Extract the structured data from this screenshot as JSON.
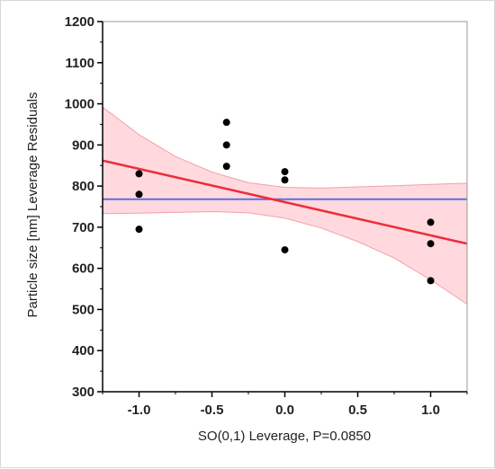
{
  "chart_data": {
    "type": "scatter",
    "title": "",
    "xlabel": "SO(0,1) Leverage, P=0.0850",
    "ylabel": "Particle size [nm] Leverage Residuals",
    "xlim": [
      -1.25,
      1.25
    ],
    "ylim": [
      300,
      1200
    ],
    "xticks": [
      -1.0,
      -0.5,
      0.0,
      0.5,
      1.0
    ],
    "xtick_labels": [
      "-1.0",
      "-0.5",
      "0.0",
      "0.5",
      "1.0"
    ],
    "yticks": [
      300,
      400,
      500,
      600,
      700,
      800,
      900,
      1000,
      1100,
      1200
    ],
    "ytick_labels": [
      "300",
      "400",
      "500",
      "600",
      "700",
      "800",
      "900",
      "1000",
      "1100",
      "1200"
    ],
    "points": [
      {
        "x": -1.0,
        "y": 830
      },
      {
        "x": -1.0,
        "y": 780
      },
      {
        "x": -1.0,
        "y": 695
      },
      {
        "x": -0.4,
        "y": 955
      },
      {
        "x": -0.4,
        "y": 900
      },
      {
        "x": -0.4,
        "y": 848
      },
      {
        "x": 0.0,
        "y": 835
      },
      {
        "x": 0.0,
        "y": 815
      },
      {
        "x": 0.0,
        "y": 645
      },
      {
        "x": 1.0,
        "y": 712
      },
      {
        "x": 1.0,
        "y": 660
      },
      {
        "x": 1.0,
        "y": 570
      }
    ],
    "fit_line": {
      "x": [
        -1.25,
        1.25
      ],
      "y": [
        862,
        660
      ]
    },
    "mean_line": {
      "y": 768
    },
    "confidence_band": {
      "x": [
        -1.25,
        -1.0,
        -0.75,
        -0.5,
        -0.25,
        0.0,
        0.25,
        0.5,
        0.75,
        1.0,
        1.25
      ],
      "upper": [
        992,
        925,
        872,
        834,
        808,
        797,
        795,
        798,
        801,
        804,
        807
      ],
      "lower": [
        733,
        734,
        736,
        738,
        735,
        722,
        698,
        665,
        625,
        572,
        513
      ]
    },
    "grid": false,
    "colors": {
      "points": "#000000",
      "fit_line": "#ee2d3c",
      "mean_line": "#5b6fe0",
      "band_fill": "#ffd9de",
      "band_edge": "#f3a0a8",
      "axis": "#000000",
      "frame": "#999999"
    }
  }
}
